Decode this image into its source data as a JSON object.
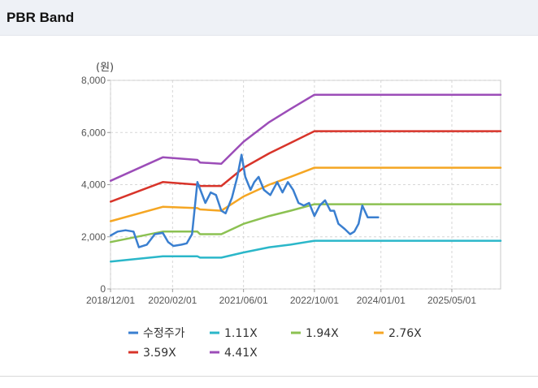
{
  "header": {
    "title": "PBR Band"
  },
  "chart_data": {
    "type": "line",
    "title": "PBR Band",
    "ylabel": "(원)",
    "ylim": [
      0,
      8000
    ],
    "y_ticks": [
      0,
      2000,
      4000,
      6000,
      8000
    ],
    "y_tick_labels": [
      "0",
      "2,000",
      "4,000",
      "6,000",
      "8,000"
    ],
    "x_range": [
      2018.917,
      2026.25
    ],
    "x_tick_labels": [
      "2018/12/01",
      "2020/02/01",
      "2021/06/01",
      "2022/10/01",
      "2024/01/01",
      "2025/05/01"
    ],
    "x_tick_values": [
      2018.917,
      2020.083,
      2021.417,
      2022.75,
      2024.0,
      2025.333
    ],
    "grid": true,
    "legend_position": "bottom",
    "series": [
      {
        "name": "수정주가",
        "color": "#3a7fd0",
        "x": [
          2018.92,
          2019.05,
          2019.2,
          2019.35,
          2019.45,
          2019.6,
          2019.75,
          2019.9,
          2020.0,
          2020.1,
          2020.25,
          2020.35,
          2020.45,
          2020.55,
          2020.7,
          2020.8,
          2020.9,
          2021.0,
          2021.08,
          2021.2,
          2021.3,
          2021.38,
          2021.45,
          2021.55,
          2021.62,
          2021.7,
          2021.8,
          2021.92,
          2022.05,
          2022.15,
          2022.25,
          2022.35,
          2022.45,
          2022.55,
          2022.65,
          2022.75,
          2022.85,
          2022.95,
          2023.05,
          2023.12,
          2023.2,
          2023.32,
          2023.42,
          2023.5,
          2023.58,
          2023.65,
          2023.75,
          2023.85,
          2023.95
        ],
        "values": [
          2050,
          2200,
          2250,
          2200,
          1600,
          1700,
          2100,
          2150,
          1800,
          1650,
          1700,
          1750,
          2100,
          4100,
          3300,
          3700,
          3600,
          3000,
          2900,
          3500,
          4300,
          5150,
          4300,
          3800,
          4100,
          4300,
          3800,
          3600,
          4100,
          3700,
          4100,
          3800,
          3300,
          3200,
          3300,
          2800,
          3200,
          3400,
          3000,
          3000,
          2500,
          2300,
          2100,
          2200,
          2500,
          3200,
          2750,
          2750,
          2750
        ]
      },
      {
        "name": "1.11X",
        "color": "#2bb7c9",
        "x": [
          2018.92,
          2019.9,
          2020.55,
          2020.6,
          2021.0,
          2021.42,
          2021.9,
          2022.3,
          2022.75,
          2026.25
        ],
        "values": [
          1050,
          1250,
          1250,
          1200,
          1200,
          1400,
          1600,
          1700,
          1850,
          1850
        ]
      },
      {
        "name": "1.94X",
        "color": "#8cc152",
        "x": [
          2018.92,
          2019.9,
          2020.55,
          2020.6,
          2021.0,
          2021.42,
          2021.9,
          2022.3,
          2022.75,
          2026.25
        ],
        "values": [
          1800,
          2200,
          2200,
          2100,
          2100,
          2500,
          2800,
          3000,
          3250,
          3250
        ]
      },
      {
        "name": "2.76X",
        "color": "#f5a623",
        "x": [
          2018.92,
          2019.9,
          2020.55,
          2020.6,
          2021.0,
          2021.42,
          2021.9,
          2022.3,
          2022.75,
          2026.25
        ],
        "values": [
          2600,
          3150,
          3100,
          3050,
          3000,
          3550,
          4000,
          4300,
          4650,
          4650
        ]
      },
      {
        "name": "3.59X",
        "color": "#d8342a",
        "x": [
          2018.92,
          2019.9,
          2020.55,
          2020.6,
          2021.0,
          2021.42,
          2021.9,
          2022.3,
          2022.75,
          2026.25
        ],
        "values": [
          3350,
          4100,
          4000,
          3950,
          3950,
          4650,
          5200,
          5600,
          6050,
          6050
        ]
      },
      {
        "name": "4.41X",
        "color": "#9c4db8",
        "x": [
          2018.92,
          2019.9,
          2020.55,
          2020.6,
          2021.0,
          2021.42,
          2021.9,
          2022.3,
          2022.75,
          2026.25
        ],
        "values": [
          4150,
          5050,
          4950,
          4850,
          4800,
          5650,
          6400,
          6900,
          7450,
          7450
        ]
      }
    ]
  }
}
